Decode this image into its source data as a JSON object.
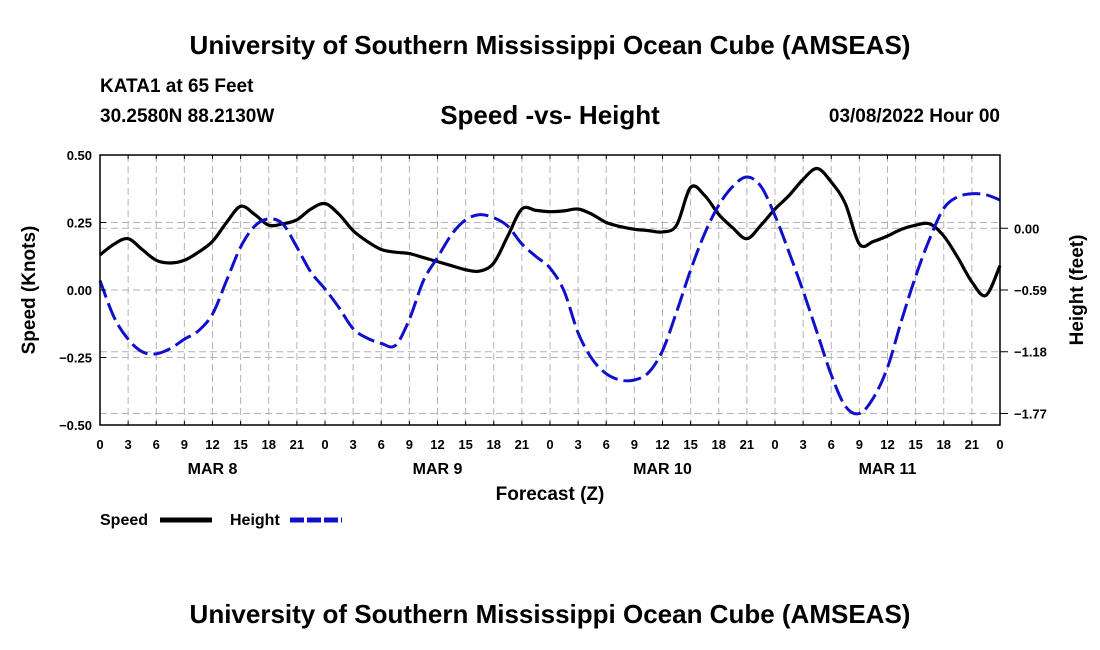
{
  "header": {
    "main_title": "University of Southern Mississippi Ocean Cube (AMSEAS)",
    "station": "KATA1 at 65 Feet",
    "coords": "30.2580N  88.2130W",
    "subtitle": "Speed -vs- Height",
    "datetime": "03/08/2022 Hour 00"
  },
  "footer": {
    "title": "University of Southern Mississippi Ocean Cube (AMSEAS)"
  },
  "chart_data": {
    "type": "line",
    "title": "Speed -vs- Height",
    "xlabel": "Forecast (Z)",
    "ylabel": "Speed (Knots)",
    "y2label": "Height (feet)",
    "x_range_hours": [
      0,
      96
    ],
    "ylim": [
      -0.5,
      0.5
    ],
    "y2lim": [
      -1.88,
      0.7
    ],
    "x_tick_labels": [
      "0",
      "3",
      "6",
      "9",
      "12",
      "15",
      "18",
      "21",
      "0",
      "3",
      "6",
      "9",
      "12",
      "15",
      "18",
      "21",
      "0",
      "3",
      "6",
      "9",
      "12",
      "15",
      "18",
      "21",
      "0",
      "3",
      "6",
      "9",
      "12",
      "15",
      "18",
      "21",
      "0"
    ],
    "y_ticks": [
      {
        "value": 0.5,
        "label": "0.50"
      },
      {
        "value": 0.25,
        "label": "0.25"
      },
      {
        "value": 0.0,
        "label": "0.00"
      },
      {
        "value": -0.25,
        "label": "−0.25"
      },
      {
        "value": -0.5,
        "label": "−0.50"
      }
    ],
    "y2_ticks": [
      {
        "value": 0.0,
        "label": "0.00"
      },
      {
        "value": -0.59,
        "label": "−0.59"
      },
      {
        "value": -1.18,
        "label": "−1.18"
      },
      {
        "value": -1.77,
        "label": "−1.77"
      }
    ],
    "day_labels": [
      {
        "hour": 12,
        "label": "MAR 8"
      },
      {
        "hour": 36,
        "label": "MAR 9"
      },
      {
        "hour": 60,
        "label": "MAR 10"
      },
      {
        "hour": 84,
        "label": "MAR 11"
      }
    ],
    "series": [
      {
        "name": "Speed",
        "legend_label": "Speed",
        "axis": "left",
        "color": "#000000",
        "dash": "solid",
        "points": [
          [
            0,
            0.13
          ],
          [
            1.5,
            0.17
          ],
          [
            3,
            0.19
          ],
          [
            4.5,
            0.15
          ],
          [
            6,
            0.11
          ],
          [
            7.5,
            0.1
          ],
          [
            9,
            0.11
          ],
          [
            10.5,
            0.14
          ],
          [
            12,
            0.18
          ],
          [
            13.5,
            0.25
          ],
          [
            15,
            0.31
          ],
          [
            16.5,
            0.28
          ],
          [
            18,
            0.24
          ],
          [
            19.5,
            0.245
          ],
          [
            21,
            0.26
          ],
          [
            22.5,
            0.3
          ],
          [
            24,
            0.32
          ],
          [
            25.5,
            0.28
          ],
          [
            27,
            0.22
          ],
          [
            28.5,
            0.18
          ],
          [
            30,
            0.15
          ],
          [
            31.5,
            0.14
          ],
          [
            33,
            0.135
          ],
          [
            34.5,
            0.12
          ],
          [
            36,
            0.105
          ],
          [
            37.5,
            0.09
          ],
          [
            39,
            0.075
          ],
          [
            40.5,
            0.07
          ],
          [
            42,
            0.1
          ],
          [
            43.5,
            0.2
          ],
          [
            45,
            0.3
          ],
          [
            46.5,
            0.295
          ],
          [
            48,
            0.29
          ],
          [
            49.5,
            0.293
          ],
          [
            51,
            0.3
          ],
          [
            52.5,
            0.28
          ],
          [
            54,
            0.25
          ],
          [
            55.5,
            0.235
          ],
          [
            57,
            0.225
          ],
          [
            58.5,
            0.22
          ],
          [
            60,
            0.215
          ],
          [
            61.5,
            0.24
          ],
          [
            63,
            0.38
          ],
          [
            64.5,
            0.35
          ],
          [
            66,
            0.28
          ],
          [
            67.5,
            0.23
          ],
          [
            69,
            0.19
          ],
          [
            70.5,
            0.24
          ],
          [
            72,
            0.3
          ],
          [
            73.5,
            0.35
          ],
          [
            75,
            0.41
          ],
          [
            76.5,
            0.45
          ],
          [
            78,
            0.4
          ],
          [
            79.5,
            0.32
          ],
          [
            81,
            0.17
          ],
          [
            82.5,
            0.18
          ],
          [
            84,
            0.2
          ],
          [
            85.5,
            0.225
          ],
          [
            87,
            0.24
          ],
          [
            88.5,
            0.245
          ],
          [
            90,
            0.2
          ],
          [
            91.5,
            0.12
          ],
          [
            93,
            0.03
          ],
          [
            94.5,
            -0.02
          ],
          [
            96,
            0.09
          ]
        ]
      },
      {
        "name": "Height",
        "legend_label": "Height",
        "axis": "right",
        "color": "#1010cc",
        "dash": "dashed",
        "points": [
          [
            0,
            -0.5
          ],
          [
            1.5,
            -0.85
          ],
          [
            3,
            -1.06
          ],
          [
            4.5,
            -1.18
          ],
          [
            6,
            -1.2
          ],
          [
            7.5,
            -1.15
          ],
          [
            9,
            -1.06
          ],
          [
            10.5,
            -0.98
          ],
          [
            12,
            -0.82
          ],
          [
            13.5,
            -0.5
          ],
          [
            15,
            -0.18
          ],
          [
            16.5,
            0.02
          ],
          [
            18,
            0.09
          ],
          [
            19.5,
            0.04
          ],
          [
            21,
            -0.18
          ],
          [
            22.5,
            -0.42
          ],
          [
            24,
            -0.58
          ],
          [
            25.5,
            -0.76
          ],
          [
            27,
            -0.96
          ],
          [
            28.5,
            -1.05
          ],
          [
            30,
            -1.1
          ],
          [
            31.5,
            -1.12
          ],
          [
            33,
            -0.87
          ],
          [
            34.5,
            -0.5
          ],
          [
            36,
            -0.28
          ],
          [
            37.5,
            -0.06
          ],
          [
            39,
            0.08
          ],
          [
            40.5,
            0.13
          ],
          [
            42,
            0.1
          ],
          [
            43.5,
            0.02
          ],
          [
            45,
            -0.15
          ],
          [
            46.5,
            -0.27
          ],
          [
            48,
            -0.38
          ],
          [
            49.5,
            -0.6
          ],
          [
            51,
            -1.0
          ],
          [
            52.5,
            -1.25
          ],
          [
            54,
            -1.39
          ],
          [
            55.5,
            -1.45
          ],
          [
            57,
            -1.45
          ],
          [
            58.5,
            -1.38
          ],
          [
            60,
            -1.17
          ],
          [
            61.5,
            -0.8
          ],
          [
            63,
            -0.4
          ],
          [
            64.5,
            -0.05
          ],
          [
            66,
            0.22
          ],
          [
            67.5,
            0.4
          ],
          [
            69,
            0.49
          ],
          [
            70.5,
            0.4
          ],
          [
            72,
            0.12
          ],
          [
            73.5,
            -0.23
          ],
          [
            75,
            -0.6
          ],
          [
            76.5,
            -1.0
          ],
          [
            78,
            -1.4
          ],
          [
            79.5,
            -1.7
          ],
          [
            81,
            -1.77
          ],
          [
            82.5,
            -1.62
          ],
          [
            84,
            -1.33
          ],
          [
            85.5,
            -0.88
          ],
          [
            87,
            -0.46
          ],
          [
            88.5,
            -0.1
          ],
          [
            90,
            0.19
          ],
          [
            91.5,
            0.3
          ],
          [
            93,
            0.33
          ],
          [
            94.5,
            0.32
          ],
          [
            96,
            0.27
          ]
        ]
      }
    ]
  }
}
